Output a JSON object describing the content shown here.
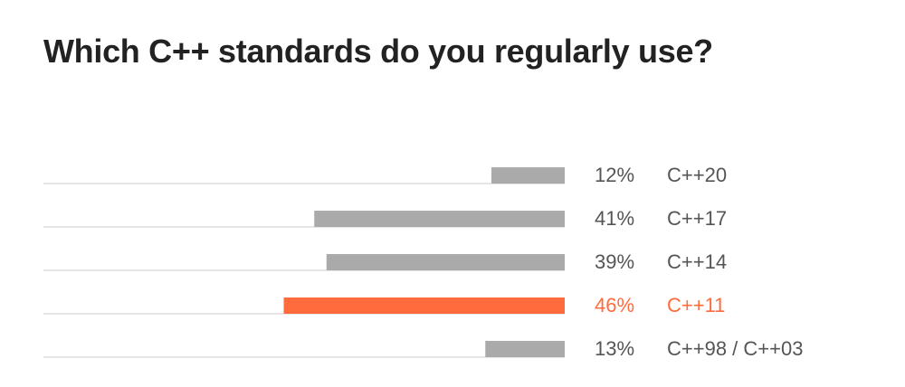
{
  "chart_data": {
    "type": "bar",
    "orientation": "horizontal",
    "title": "Which C++ standards do you regularly use?",
    "categories": [
      "C++20",
      "C++17",
      "C++14",
      "C++11",
      "C++98 / C++03"
    ],
    "values": [
      12,
      41,
      39,
      46,
      13
    ],
    "value_labels": [
      "12%",
      "41%",
      "39%",
      "46%",
      "13%"
    ],
    "unit": "%",
    "highlight_index": 3,
    "xlim": [
      0,
      100
    ],
    "grid": false,
    "legend": "none"
  },
  "colors": {
    "bar": "#aaaaaa",
    "highlight": "#ff6b3d",
    "baseline": "#cccccc",
    "label": "#555555",
    "title": "#222222"
  }
}
